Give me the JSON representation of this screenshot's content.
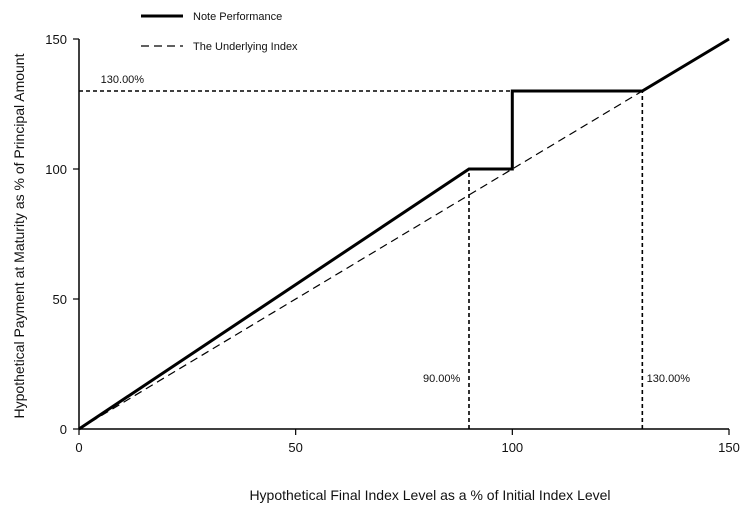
{
  "chart_data": {
    "type": "line",
    "title": "",
    "xlabel": "Hypothetical Final Index Level as a % of Initial Index Level",
    "ylabel": "Hypothetical Payment at Maturity as % of Principal Amount",
    "xlim": [
      0,
      150
    ],
    "ylim": [
      0,
      150
    ],
    "x_ticks": [
      0,
      50,
      100,
      150
    ],
    "y_ticks": [
      0,
      50,
      100,
      150
    ],
    "x_tick_labels": [
      "0",
      "50",
      "100",
      "150"
    ],
    "y_tick_labels": [
      "0",
      "50",
      "100",
      "150"
    ],
    "grid": false,
    "legend_position": "top-left",
    "series": [
      {
        "name": "Note Performance",
        "style": "solid-thick",
        "color": "#000000",
        "x": [
          0,
          30,
          90,
          100,
          100,
          130,
          150
        ],
        "y": [
          0,
          33.3,
          100,
          100,
          130,
          130,
          150
        ]
      },
      {
        "name": "The Underlying Index",
        "style": "dashed",
        "color": "#000000",
        "x": [
          0,
          150
        ],
        "y": [
          0,
          150
        ]
      }
    ],
    "reference_lines": [
      {
        "kind": "horizontal",
        "y": 130,
        "x_from": 0,
        "x_to": 130
      },
      {
        "kind": "vertical",
        "x": 90,
        "y_from": 0,
        "y_to": 100
      },
      {
        "kind": "vertical",
        "x": 130,
        "y_from": 0,
        "y_to": 130
      }
    ],
    "annotations": [
      {
        "text": "130.00%",
        "x": 5,
        "y": 133,
        "anchor": "start"
      },
      {
        "text": "90.00%",
        "x": 88,
        "y": 18,
        "anchor": "end"
      },
      {
        "text": "130.00%",
        "x": 131,
        "y": 18,
        "anchor": "start"
      }
    ]
  }
}
